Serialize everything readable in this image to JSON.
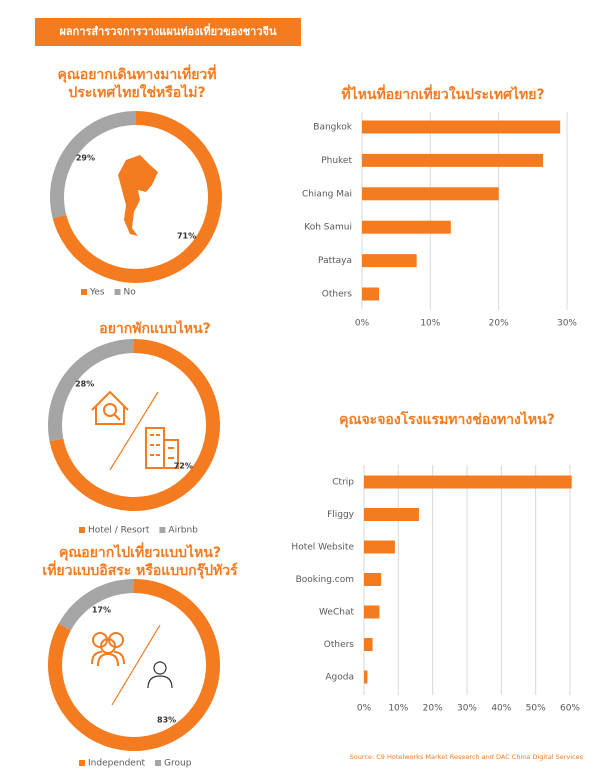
{
  "header": "ผลการสำรวจการวางแผนท่องเที่ยวของชาวจีน",
  "chart_data": [
    {
      "type": "pie",
      "title": [
        "คุณอยากเดินทางมาเที่ยวที่",
        "ประเทศไทยใช่หรือไม่?"
      ],
      "categories": [
        "Yes",
        "No"
      ],
      "values": [
        71,
        29
      ],
      "value_labels": [
        "71%",
        "29%"
      ],
      "colors": [
        "#f47b20",
        "#a5a5a5"
      ],
      "legend": "bottom"
    },
    {
      "type": "bar",
      "orientation": "horizontal",
      "title": [
        "ที่ไหนที่อยากเที่ยวในประเทศไทย?"
      ],
      "categories": [
        "Bangkok",
        "Phuket",
        "Chiang Mai",
        "Koh Samui",
        "Pattaya",
        "Others"
      ],
      "values": [
        29,
        26.5,
        20,
        13,
        8,
        2.5
      ],
      "color": "#f47b20",
      "xlim": [
        0,
        30
      ],
      "xticks": [
        {
          "value": 0,
          "label": "0%"
        },
        {
          "value": 10,
          "label": "10%"
        },
        {
          "value": 20,
          "label": "20%"
        },
        {
          "value": 30,
          "label": "30%"
        }
      ],
      "grid": true
    },
    {
      "type": "pie",
      "title": [
        "อยากพักแบบไหน?"
      ],
      "categories": [
        "Hotel / Resort",
        "Airbnb"
      ],
      "values": [
        72,
        28
      ],
      "value_labels": [
        "72%",
        "28%"
      ],
      "colors": [
        "#f47b20",
        "#a5a5a5"
      ],
      "legend": "bottom"
    },
    {
      "type": "bar",
      "orientation": "horizontal",
      "title": [
        "คุณจะจองโรงแรมทางช่องทางไหน?"
      ],
      "categories": [
        "Ctrip",
        "Fliggy",
        "Hotel Website",
        "Booking.com",
        "WeChat",
        "Others",
        "Agoda"
      ],
      "values": [
        60.5,
        16,
        9,
        5,
        4.5,
        2.5,
        1
      ],
      "color": "#f47b20",
      "xlim": [
        0,
        60
      ],
      "xticks": [
        {
          "value": 0,
          "label": "0%"
        },
        {
          "value": 10,
          "label": "10%"
        },
        {
          "value": 20,
          "label": "20%"
        },
        {
          "value": 30,
          "label": "30%"
        },
        {
          "value": 40,
          "label": "40%"
        },
        {
          "value": 50,
          "label": "50%"
        },
        {
          "value": 60,
          "label": "60%"
        }
      ],
      "grid": true
    },
    {
      "type": "pie",
      "title": [
        "คุณอยากไปเที่ยวแบบไหน?",
        "เที่ยวแบบอิสระ หรือแบบกรุ๊ปทัวร์"
      ],
      "categories": [
        "Independent",
        "Group"
      ],
      "values": [
        83,
        17
      ],
      "value_labels": [
        "83%",
        "17%"
      ],
      "colors": [
        "#f47b20",
        "#a5a5a5"
      ],
      "legend": "bottom"
    }
  ],
  "source": "Source: C9 Hotelworks Market Research and DAC China Digital Services"
}
